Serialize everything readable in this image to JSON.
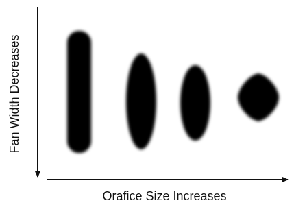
{
  "y_axis_label": "Fan Width Decreases",
  "x_axis_label": "Orafice Size Increases"
}
